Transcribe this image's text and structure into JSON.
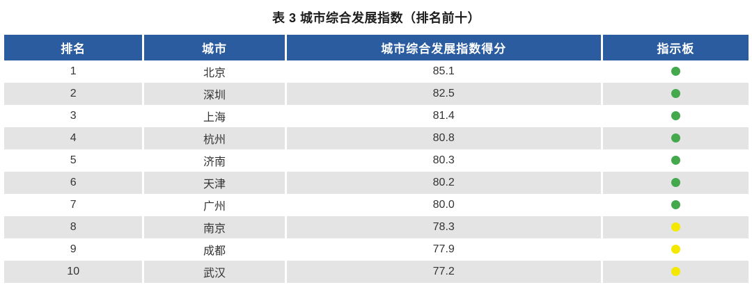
{
  "title": "表 3 城市综合发展指数（排名前十）",
  "table": {
    "columns": [
      "排名",
      "城市",
      "城市综合发展指数得分",
      "指示板"
    ],
    "rows": [
      {
        "rank": "1",
        "city": "北京",
        "score": "85.1",
        "indicator": "green"
      },
      {
        "rank": "2",
        "city": "深圳",
        "score": "82.5",
        "indicator": "green"
      },
      {
        "rank": "3",
        "city": "上海",
        "score": "81.4",
        "indicator": "green"
      },
      {
        "rank": "4",
        "city": "杭州",
        "score": "80.8",
        "indicator": "green"
      },
      {
        "rank": "5",
        "city": "济南",
        "score": "80.3",
        "indicator": "green"
      },
      {
        "rank": "6",
        "city": "天津",
        "score": "80.2",
        "indicator": "green"
      },
      {
        "rank": "7",
        "city": "广州",
        "score": "80.0",
        "indicator": "green"
      },
      {
        "rank": "8",
        "city": "南京",
        "score": "78.3",
        "indicator": "yellow"
      },
      {
        "rank": "9",
        "city": "成都",
        "score": "77.9",
        "indicator": "yellow"
      },
      {
        "rank": "10",
        "city": "武汉",
        "score": "77.2",
        "indicator": "yellow"
      }
    ]
  },
  "colors": {
    "header_bg": "#2B5CA0",
    "row_alt_bg": "#E4E4E4",
    "indicator_green": "#44A94C",
    "indicator_yellow": "#F5E800"
  },
  "chart_data": {
    "type": "table",
    "title": "表 3 城市综合发展指数（排名前十）",
    "columns": [
      "排名",
      "城市",
      "城市综合发展指数得分",
      "指示板"
    ],
    "categories": [
      "北京",
      "深圳",
      "上海",
      "杭州",
      "济南",
      "天津",
      "广州",
      "南京",
      "成都",
      "武汉"
    ],
    "values": [
      85.1,
      82.5,
      81.4,
      80.8,
      80.3,
      80.2,
      80.0,
      78.3,
      77.9,
      77.2
    ],
    "indicators": [
      "green",
      "green",
      "green",
      "green",
      "green",
      "green",
      "green",
      "yellow",
      "yellow",
      "yellow"
    ]
  }
}
